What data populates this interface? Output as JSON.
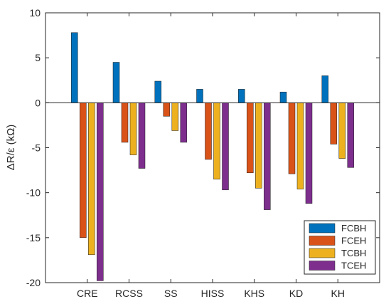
{
  "chart_data": {
    "type": "bar",
    "title": "",
    "xlabel": "",
    "ylabel": "ΔR/ε (kΩ)",
    "ylim": [
      -20,
      10
    ],
    "yticks": [
      10,
      5,
      0,
      -5,
      -10,
      -15,
      -20
    ],
    "grid": false,
    "legend_position": "bottom-right",
    "categories": [
      "CRE",
      "RCSS",
      "SS",
      "HISS",
      "KHS",
      "KD",
      "KH"
    ],
    "series": [
      {
        "name": "FCBH",
        "color": "#0072BD",
        "values": [
          7.8,
          4.5,
          2.4,
          1.5,
          1.5,
          1.2,
          3.0
        ]
      },
      {
        "name": "FCEH",
        "color": "#D95319",
        "values": [
          -15.0,
          -4.4,
          -1.5,
          -6.3,
          -7.8,
          -7.9,
          -4.6
        ]
      },
      {
        "name": "TCBH",
        "color": "#EDB120",
        "values": [
          -16.9,
          -5.8,
          -3.1,
          -8.5,
          -9.5,
          -9.6,
          -6.2
        ]
      },
      {
        "name": "TCEH",
        "color": "#7E2F8E",
        "values": [
          -19.8,
          -7.3,
          -4.4,
          -9.7,
          -11.9,
          -11.2,
          -7.2
        ]
      }
    ]
  }
}
